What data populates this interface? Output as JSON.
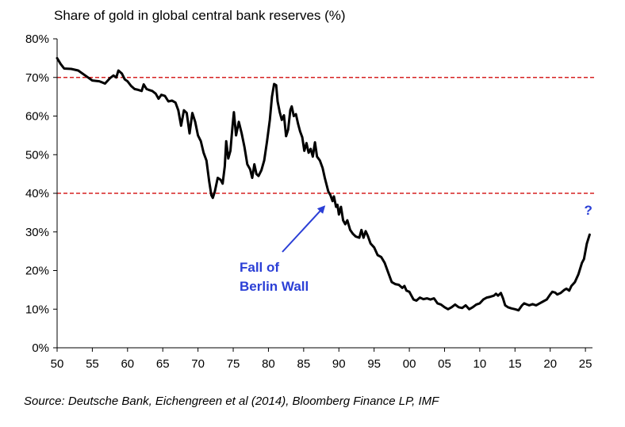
{
  "chart_data": {
    "type": "line",
    "title": "Share of gold in global central bank reserves (%)",
    "xlabel": "",
    "ylabel": "",
    "xlim": [
      1950,
      2026
    ],
    "ylim": [
      0,
      80
    ],
    "x_ticks": [
      1950,
      1955,
      1960,
      1965,
      1970,
      1975,
      1980,
      1985,
      1990,
      1995,
      2000,
      2005,
      2010,
      2015,
      2020,
      2025
    ],
    "x_tick_labels": [
      "50",
      "55",
      "60",
      "65",
      "70",
      "75",
      "80",
      "85",
      "90",
      "95",
      "00",
      "05",
      "10",
      "15",
      "20",
      "25"
    ],
    "y_ticks": [
      0,
      10,
      20,
      30,
      40,
      50,
      60,
      70,
      80
    ],
    "y_tick_labels": [
      "0%",
      "10%",
      "20%",
      "30%",
      "40%",
      "50%",
      "60%",
      "70%",
      "80%"
    ],
    "grid": false,
    "reference_lines": [
      {
        "y": 70,
        "color": "#d62020",
        "style": "dashed"
      },
      {
        "y": 40,
        "color": "#d62020",
        "style": "dashed"
      }
    ],
    "series": [
      {
        "color": "#000000",
        "points": [
          [
            1950,
            75
          ],
          [
            1950.5,
            73.5
          ],
          [
            1951,
            72.3
          ],
          [
            1952,
            72.2
          ],
          [
            1953,
            71.8
          ],
          [
            1954,
            70.5
          ],
          [
            1955,
            69.2
          ],
          [
            1956,
            69
          ],
          [
            1956.8,
            68.4
          ],
          [
            1957.5,
            69.8
          ],
          [
            1958,
            70.5
          ],
          [
            1958.4,
            70
          ],
          [
            1958.7,
            71.8
          ],
          [
            1959.2,
            71
          ],
          [
            1959.6,
            69.5
          ],
          [
            1960,
            69
          ],
          [
            1960.5,
            67.8
          ],
          [
            1961,
            67
          ],
          [
            1961.5,
            66.8
          ],
          [
            1962,
            66.5
          ],
          [
            1962.3,
            68.2
          ],
          [
            1962.7,
            67
          ],
          [
            1963,
            66.8
          ],
          [
            1963.5,
            66.5
          ],
          [
            1964,
            65.8
          ],
          [
            1964.4,
            64.5
          ],
          [
            1964.8,
            65.5
          ],
          [
            1965.3,
            65.2
          ],
          [
            1965.8,
            63.8
          ],
          [
            1966.3,
            64
          ],
          [
            1966.8,
            63.5
          ],
          [
            1967.2,
            61.5
          ],
          [
            1967.6,
            57.5
          ],
          [
            1968,
            61.5
          ],
          [
            1968.4,
            60.8
          ],
          [
            1968.8,
            55.5
          ],
          [
            1969.2,
            60.8
          ],
          [
            1969.6,
            58.5
          ],
          [
            1970,
            55
          ],
          [
            1970.4,
            53.5
          ],
          [
            1970.8,
            50.5
          ],
          [
            1971.2,
            48.5
          ],
          [
            1971.6,
            43
          ],
          [
            1971.9,
            39.5
          ],
          [
            1972.1,
            38.8
          ],
          [
            1972.4,
            40.5
          ],
          [
            1972.8,
            44
          ],
          [
            1973.2,
            43.5
          ],
          [
            1973.5,
            42.5
          ],
          [
            1973.8,
            47
          ],
          [
            1974,
            53.5
          ],
          [
            1974.3,
            49
          ],
          [
            1974.6,
            51
          ],
          [
            1974.9,
            57.5
          ],
          [
            1975.1,
            61
          ],
          [
            1975.4,
            55
          ],
          [
            1975.8,
            58.5
          ],
          [
            1976.2,
            55.5
          ],
          [
            1976.6,
            52
          ],
          [
            1977,
            47.5
          ],
          [
            1977.4,
            46.2
          ],
          [
            1977.7,
            44
          ],
          [
            1978,
            47.5
          ],
          [
            1978.3,
            45
          ],
          [
            1978.6,
            44.5
          ],
          [
            1979,
            46
          ],
          [
            1979.4,
            48.5
          ],
          [
            1979.8,
            53.5
          ],
          [
            1980.2,
            59
          ],
          [
            1980.5,
            65
          ],
          [
            1980.8,
            68.3
          ],
          [
            1981.1,
            68
          ],
          [
            1981.3,
            63.8
          ],
          [
            1981.6,
            61
          ],
          [
            1981.9,
            59
          ],
          [
            1982.2,
            60.2
          ],
          [
            1982.5,
            54.8
          ],
          [
            1982.8,
            56.5
          ],
          [
            1983.1,
            61.5
          ],
          [
            1983.3,
            62.5
          ],
          [
            1983.6,
            60
          ],
          [
            1983.9,
            60.5
          ],
          [
            1984.2,
            58
          ],
          [
            1984.5,
            56
          ],
          [
            1984.8,
            54.5
          ],
          [
            1985.1,
            51
          ],
          [
            1985.4,
            53
          ],
          [
            1985.7,
            50.5
          ],
          [
            1986,
            51.5
          ],
          [
            1986.3,
            49.5
          ],
          [
            1986.6,
            53.2
          ],
          [
            1986.9,
            49.5
          ],
          [
            1987.3,
            48.5
          ],
          [
            1987.7,
            46.5
          ],
          [
            1988,
            44
          ],
          [
            1988.5,
            40.5
          ],
          [
            1988.8,
            39.5
          ],
          [
            1989.1,
            38
          ],
          [
            1989.3,
            39.2
          ],
          [
            1989.6,
            36.5
          ],
          [
            1989.8,
            37
          ],
          [
            1990,
            34.5
          ],
          [
            1990.3,
            36.5
          ],
          [
            1990.6,
            33
          ],
          [
            1990.9,
            32
          ],
          [
            1991.2,
            33
          ],
          [
            1991.6,
            30.5
          ],
          [
            1992,
            29.5
          ],
          [
            1992.4,
            28.8
          ],
          [
            1992.9,
            28.5
          ],
          [
            1993.2,
            30.5
          ],
          [
            1993.5,
            28.5
          ],
          [
            1993.8,
            30.2
          ],
          [
            1994.1,
            29
          ],
          [
            1994.5,
            27
          ],
          [
            1995,
            26
          ],
          [
            1995.5,
            24
          ],
          [
            1996,
            23.5
          ],
          [
            1996.5,
            22
          ],
          [
            1997,
            19.5
          ],
          [
            1997.5,
            17
          ],
          [
            1998,
            16.5
          ],
          [
            1998.5,
            16.3
          ],
          [
            1999,
            15.5
          ],
          [
            1999.3,
            16
          ],
          [
            1999.6,
            14.8
          ],
          [
            2000,
            14.5
          ],
          [
            2000.3,
            13.5
          ],
          [
            2000.6,
            12.5
          ],
          [
            2001,
            12.2
          ],
          [
            2001.5,
            13
          ],
          [
            2002,
            12.6
          ],
          [
            2002.5,
            12.8
          ],
          [
            2003,
            12.5
          ],
          [
            2003.5,
            12.8
          ],
          [
            2004,
            11.5
          ],
          [
            2004.5,
            11.2
          ],
          [
            2005,
            10.5
          ],
          [
            2005.5,
            10
          ],
          [
            2006,
            10.5
          ],
          [
            2006.5,
            11.2
          ],
          [
            2007,
            10.5
          ],
          [
            2007.5,
            10.3
          ],
          [
            2008,
            11
          ],
          [
            2008.5,
            10
          ],
          [
            2009,
            10.5
          ],
          [
            2009.5,
            11.2
          ],
          [
            2010,
            11.5
          ],
          [
            2010.5,
            12.5
          ],
          [
            2011,
            13
          ],
          [
            2011.5,
            13.2
          ],
          [
            2012,
            13.5
          ],
          [
            2012.3,
            14
          ],
          [
            2012.6,
            13.5
          ],
          [
            2013,
            14.2
          ],
          [
            2013.3,
            12.8
          ],
          [
            2013.6,
            11
          ],
          [
            2014,
            10.5
          ],
          [
            2014.5,
            10.2
          ],
          [
            2015,
            10
          ],
          [
            2015.5,
            9.7
          ],
          [
            2016,
            11
          ],
          [
            2016.3,
            11.5
          ],
          [
            2016.7,
            11.2
          ],
          [
            2017,
            11
          ],
          [
            2017.5,
            11.3
          ],
          [
            2018,
            11
          ],
          [
            2018.5,
            11.5
          ],
          [
            2019,
            12
          ],
          [
            2019.5,
            12.5
          ],
          [
            2020,
            13.8
          ],
          [
            2020.3,
            14.5
          ],
          [
            2020.7,
            14.3
          ],
          [
            2021,
            13.8
          ],
          [
            2021.5,
            14.2
          ],
          [
            2022,
            15
          ],
          [
            2022.3,
            15.3
          ],
          [
            2022.7,
            14.8
          ],
          [
            2023,
            16
          ],
          [
            2023.5,
            17
          ],
          [
            2024,
            19
          ],
          [
            2024.5,
            22
          ],
          [
            2024.8,
            23
          ],
          [
            2025.2,
            27
          ],
          [
            2025.6,
            29.3
          ]
        ]
      }
    ],
    "annotations": [
      {
        "lines": [
          "Fall of",
          "Berlin Wall"
        ],
        "color": "#2b3fd6",
        "arrow_to": [
          1988.6,
          37.8
        ]
      },
      {
        "text": "?",
        "color": "#2b3fd6",
        "x": 2025.4,
        "y": 34.5
      }
    ]
  },
  "footer": {
    "source": "Source: Deutsche Bank, Eichengreen et al (2014), Bloomberg Finance LP, IMF"
  }
}
